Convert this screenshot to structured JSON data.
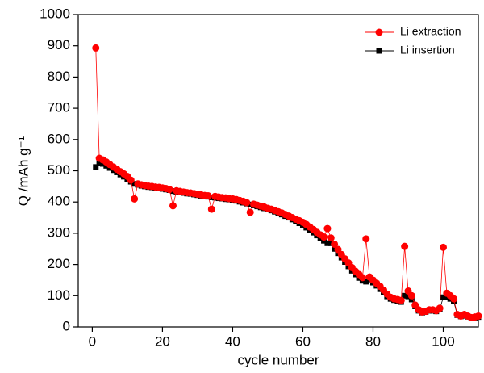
{
  "chart_data": {
    "type": "line",
    "x_label": "cycle number",
    "y_label": "Q /mAh g⁻¹",
    "xlim": [
      -4,
      110
    ],
    "xticks": [
      0,
      20,
      40,
      60,
      80,
      100
    ],
    "ylim": [
      0,
      1000
    ],
    "yticks": [
      0,
      100,
      200,
      300,
      400,
      500,
      600,
      700,
      800,
      900,
      1000
    ],
    "legend": "upper right",
    "x": [
      1,
      2,
      3,
      4,
      5,
      6,
      7,
      8,
      9,
      10,
      11,
      12,
      13,
      14,
      15,
      16,
      17,
      18,
      19,
      20,
      21,
      22,
      23,
      24,
      25,
      26,
      27,
      28,
      29,
      30,
      31,
      32,
      33,
      34,
      35,
      36,
      37,
      38,
      39,
      40,
      41,
      42,
      43,
      44,
      45,
      46,
      47,
      48,
      49,
      50,
      51,
      52,
      53,
      54,
      55,
      56,
      57,
      58,
      59,
      60,
      61,
      62,
      63,
      64,
      65,
      66,
      67,
      68,
      69,
      70,
      71,
      72,
      73,
      74,
      75,
      76,
      77,
      78,
      79,
      80,
      81,
      82,
      83,
      84,
      85,
      86,
      87,
      88,
      89,
      90,
      91,
      92,
      93,
      94,
      95,
      96,
      97,
      98,
      99,
      100,
      101,
      102,
      103,
      104,
      105,
      106,
      107,
      108,
      109,
      110
    ],
    "series": [
      {
        "name": "Li extraction",
        "color": "#ff0000",
        "marker": "circle",
        "values": [
          893,
          540,
          535,
          528,
          520,
          512,
          505,
          497,
          490,
          482,
          470,
          410,
          458,
          455,
          453,
          451,
          450,
          448,
          447,
          445,
          443,
          440,
          388,
          436,
          434,
          432,
          430,
          429,
          427,
          425,
          423,
          421,
          420,
          377,
          418,
          416,
          414,
          413,
          411,
          410,
          408,
          405,
          402,
          398,
          367,
          393,
          390,
          387,
          384,
          380,
          377,
          373,
          369,
          365,
          360,
          355,
          350,
          345,
          340,
          335,
          328,
          320,
          312,
          303,
          295,
          288,
          315,
          285,
          265,
          248,
          232,
          218,
          205,
          190,
          178,
          168,
          158,
          282,
          160,
          150,
          140,
          130,
          118,
          105,
          95,
          90,
          88,
          85,
          258,
          115,
          100,
          70,
          55,
          48,
          50,
          55,
          55,
          52,
          60,
          255,
          108,
          100,
          90,
          40,
          35,
          40,
          35,
          30,
          32,
          35
        ]
      },
      {
        "name": "Li insertion",
        "color": "#000000",
        "marker": "square",
        "values": [
          512,
          525,
          522,
          516,
          509,
          502,
          495,
          488,
          481,
          474,
          465,
          458,
          455,
          452,
          450,
          448,
          447,
          445,
          444,
          442,
          440,
          438,
          435,
          433,
          431,
          429,
          427,
          426,
          424,
          422,
          420,
          418,
          417,
          415,
          414,
          412,
          411,
          409,
          408,
          406,
          404,
          401,
          398,
          395,
          392,
          389,
          386,
          383,
          380,
          376,
          373,
          369,
          365,
          360,
          355,
          350,
          344,
          338,
          332,
          326,
          318,
          310,
          302,
          293,
          284,
          276,
          268,
          268,
          250,
          236,
          222,
          208,
          194,
          180,
          168,
          157,
          148,
          145,
          152,
          142,
          132,
          121,
          110,
          98,
          90,
          86,
          84,
          80,
          100,
          98,
          88,
          66,
          52,
          46,
          48,
          52,
          52,
          50,
          56,
          95,
          95,
          90,
          82,
          38,
          34,
          36,
          33,
          30,
          30,
          32
        ]
      }
    ]
  }
}
